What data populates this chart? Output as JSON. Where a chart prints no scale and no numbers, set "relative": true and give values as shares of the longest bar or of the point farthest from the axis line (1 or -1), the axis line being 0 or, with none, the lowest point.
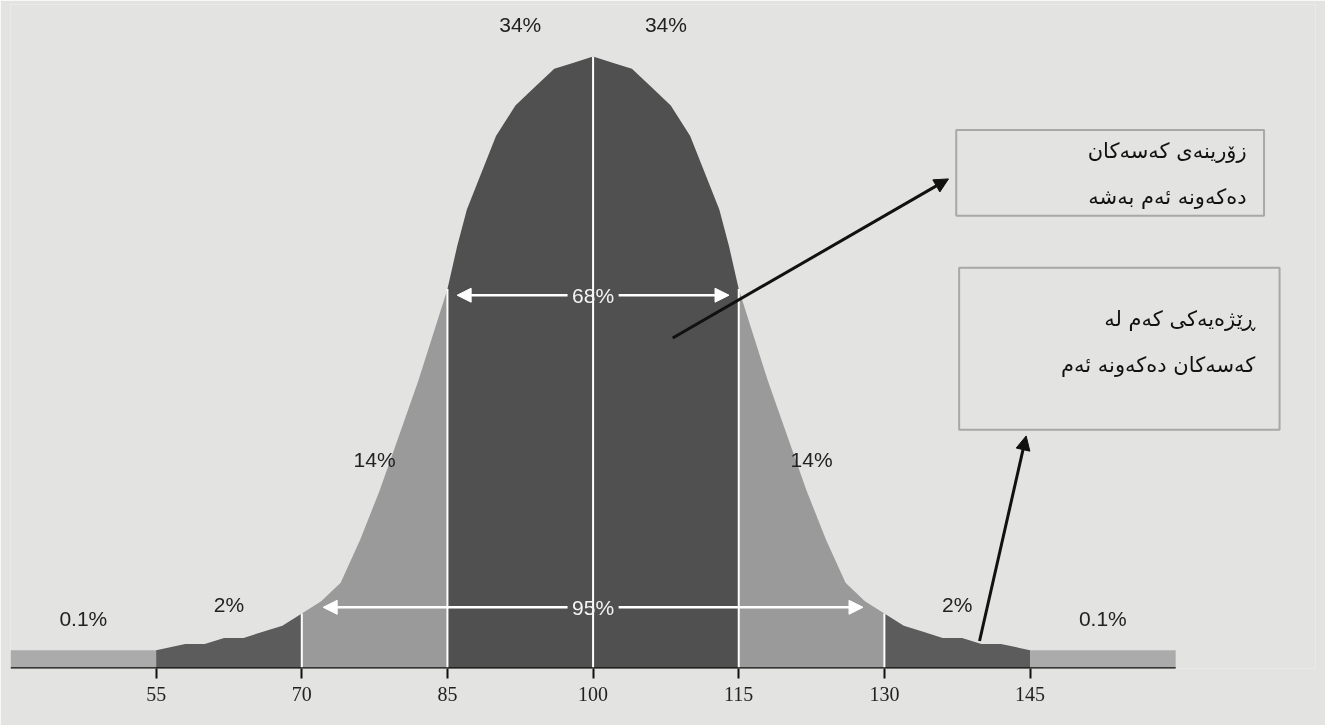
{
  "chart_data": {
    "type": "area",
    "relative": true,
    "xlim": [
      40,
      160
    ],
    "xticks": [
      55,
      70,
      85,
      100,
      115,
      130,
      145
    ],
    "series": [
      {
        "name": "0.1%",
        "color": "#ababab",
        "x": [
          40,
          55
        ],
        "values": [
          0.03,
          0.03
        ]
      },
      {
        "name": "2%",
        "color": "#5c5c5c",
        "x": [
          55,
          58,
          60,
          62,
          64,
          66,
          68,
          70
        ],
        "values": [
          0.03,
          0.04,
          0.04,
          0.05,
          0.05,
          0.06,
          0.07,
          0.09
        ]
      },
      {
        "name": "14%",
        "color": "#9a9a9a",
        "x": [
          70,
          72,
          74,
          76,
          78,
          80,
          82,
          84,
          85
        ],
        "values": [
          0.09,
          0.11,
          0.14,
          0.21,
          0.29,
          0.38,
          0.47,
          0.57,
          0.62
        ]
      },
      {
        "name": "34%",
        "color": "#505050",
        "x": [
          85,
          86,
          87,
          88,
          90,
          92,
          94,
          96,
          98,
          100
        ],
        "values": [
          0.62,
          0.69,
          0.75,
          0.79,
          0.87,
          0.92,
          0.95,
          0.98,
          0.99,
          1
        ]
      },
      {
        "name": "34%",
        "color": "#505050",
        "x": [
          100,
          102,
          104,
          106,
          108,
          110,
          112,
          113,
          114,
          115
        ],
        "values": [
          1,
          0.99,
          0.98,
          0.95,
          0.92,
          0.87,
          0.79,
          0.75,
          0.69,
          0.62
        ]
      },
      {
        "name": "14%",
        "color": "#9a9a9a",
        "x": [
          115,
          116,
          118,
          120,
          122,
          124,
          126,
          128,
          130
        ],
        "values": [
          0.62,
          0.57,
          0.47,
          0.38,
          0.29,
          0.21,
          0.14,
          0.11,
          0.09
        ]
      },
      {
        "name": "2%",
        "color": "#5c5c5c",
        "x": [
          130,
          132,
          134,
          136,
          138,
          140,
          142,
          145
        ],
        "values": [
          0.09,
          0.07,
          0.06,
          0.05,
          0.05,
          0.04,
          0.04,
          0.03
        ]
      },
      {
        "name": "0.1%",
        "color": "#ababab",
        "x": [
          145,
          160
        ],
        "values": [
          0.03,
          0.03
        ]
      }
    ],
    "ref_lines": [
      {
        "axis": "x",
        "value": 70,
        "color": "#ffffff"
      },
      {
        "axis": "x",
        "value": 85,
        "color": "#ffffff"
      },
      {
        "axis": "x",
        "value": 100,
        "color": "#ffffff"
      },
      {
        "axis": "x",
        "value": 115,
        "color": "#ffffff"
      },
      {
        "axis": "x",
        "value": 130,
        "color": "#ffffff"
      }
    ],
    "annotations": [
      {
        "text": "68%",
        "x": 100,
        "y": 0.61
      },
      {
        "text": "95%",
        "x": 100,
        "y": 0.1
      },
      "زۆرینەی کەسەکان\nدەکەونە ئەم بەشە",
      "ڕێژەیەکی کەم لە\nکەسەکان دەکەونە ئەم"
    ]
  }
}
